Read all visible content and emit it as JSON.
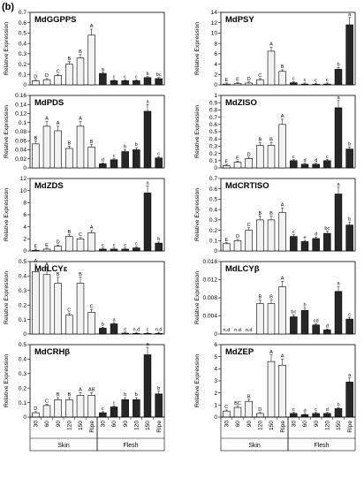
{
  "figure_label": "(b)",
  "colors": {
    "skin": "#f2f2f2",
    "flesh": "#262626",
    "axis": "#000000"
  },
  "categories": [
    "30",
    "60",
    "90",
    "120",
    "150",
    "Ripe",
    "30",
    "60",
    "90",
    "120",
    "150",
    "Ripe"
  ],
  "groups": [
    "Skin",
    "Flesh"
  ],
  "chart_data": [
    {
      "type": "bar",
      "title": "MdGGPPS",
      "ylabel": "Relative Expression",
      "ylim": [
        0,
        0.7
      ],
      "yticks": [
        "0",
        "0.1",
        "0.2",
        "0.3",
        "0.4",
        "0.5",
        "0.6",
        "0.7"
      ],
      "series": [
        {
          "name": "Skin",
          "values": [
            0.04,
            0.05,
            0.09,
            0.2,
            0.26,
            0.48
          ],
          "labels": [
            "D",
            "D",
            "C",
            "B",
            "B",
            "A"
          ]
        },
        {
          "name": "Flesh",
          "values": [
            0.11,
            0.04,
            0.04,
            0.04,
            0.07,
            0.06
          ],
          "labels": [
            "a",
            "c",
            "c",
            "c",
            "b",
            "bc"
          ]
        }
      ]
    },
    {
      "type": "bar",
      "title": "MdPSY",
      "ylabel": "Relative Expression",
      "ylim": [
        0,
        14
      ],
      "yticks": [
        "0",
        "2",
        "4",
        "6",
        "8",
        "10",
        "12",
        "14"
      ],
      "series": [
        {
          "name": "Skin",
          "values": [
            0.15,
            0.25,
            0.35,
            1.0,
            6.5,
            2.6
          ],
          "labels": [
            "E",
            "E",
            "D",
            "C",
            "A",
            "B"
          ]
        },
        {
          "name": "Flesh",
          "values": [
            0.4,
            0.15,
            0.1,
            0.15,
            3.0,
            11.6
          ],
          "labels": [
            "c",
            "c",
            "c",
            "c",
            "b",
            "a"
          ]
        }
      ]
    },
    {
      "type": "bar",
      "title": "MdPDS",
      "ylabel": "Relative Expression",
      "ylim": [
        0,
        0.16
      ],
      "yticks": [
        "0",
        "0.02",
        "0.04",
        "0.06",
        "0.08",
        "0.1",
        "0.12",
        "0.14",
        "0.16"
      ],
      "series": [
        {
          "name": "Skin",
          "values": [
            0.053,
            0.092,
            0.082,
            0.043,
            0.092,
            0.046
          ],
          "labels": [
            "B",
            "A",
            "A",
            "B",
            "A",
            "B"
          ]
        },
        {
          "name": "Flesh",
          "values": [
            0.009,
            0.018,
            0.036,
            0.04,
            0.125,
            0.022
          ],
          "labels": [
            "d",
            "c",
            "b",
            "b",
            "a",
            "c"
          ]
        }
      ]
    },
    {
      "type": "bar",
      "title": "MdZISO",
      "ylabel": "Relative Expression",
      "ylim": [
        0,
        1
      ],
      "yticks": [
        "0",
        "0.1",
        "0.2",
        "0.3",
        "0.4",
        "0.5",
        "0.6",
        "0.7",
        "0.8",
        "0.9",
        "1"
      ],
      "series": [
        {
          "name": "Skin",
          "values": [
            0.03,
            0.08,
            0.13,
            0.31,
            0.31,
            0.6
          ],
          "labels": [
            "E",
            "E",
            "D",
            "B",
            "B",
            "A"
          ]
        },
        {
          "name": "Flesh",
          "values": [
            0.1,
            0.05,
            0.05,
            0.1,
            0.83,
            0.26
          ],
          "labels": [
            "c",
            "d",
            "d",
            "c",
            "a",
            "b"
          ]
        }
      ]
    },
    {
      "type": "bar",
      "title": "MdZDS",
      "ylabel": "Relative Expression",
      "ylim": [
        0,
        12
      ],
      "yticks": [
        "0",
        "2",
        "4",
        "6",
        "8",
        "10",
        "12"
      ],
      "series": [
        {
          "name": "Skin",
          "values": [
            0.1,
            0.3,
            0.8,
            2.4,
            2.0,
            3.0
          ],
          "labels": [
            "E",
            "E",
            "D",
            "B",
            "C",
            "A"
          ]
        },
        {
          "name": "Flesh",
          "values": [
            0.3,
            0.3,
            0.3,
            0.5,
            9.6,
            1.3
          ],
          "labels": [
            "c",
            "c",
            "c",
            "c",
            "a",
            "b"
          ]
        }
      ]
    },
    {
      "type": "bar",
      "title": "MdCRTISO",
      "ylabel": "Relative Expression",
      "ylim": [
        0,
        0.7
      ],
      "yticks": [
        "0",
        "0.1",
        "0.2",
        "0.3",
        "0.4",
        "0.5",
        "0.6",
        "0.7"
      ],
      "series": [
        {
          "name": "Skin",
          "values": [
            0.07,
            0.1,
            0.2,
            0.3,
            0.3,
            0.37
          ],
          "labels": [
            "E",
            "D",
            "C",
            "B",
            "B",
            "A"
          ]
        },
        {
          "name": "Flesh",
          "values": [
            0.14,
            0.09,
            0.12,
            0.17,
            0.55,
            0.25
          ],
          "labels": [
            "c",
            "e",
            "d",
            "bc",
            "a",
            "b"
          ]
        }
      ]
    },
    {
      "type": "bar",
      "title": "MdLCYε",
      "ylabel": "Relative Expression",
      "ylim": [
        0,
        0.5
      ],
      "yticks": [
        "0",
        "0.1",
        "0.2",
        "0.3",
        "0.4",
        "0.5"
      ],
      "series": [
        {
          "name": "Skin",
          "values": [
            0.43,
            0.41,
            0.35,
            0.13,
            0.35,
            0.15
          ],
          "labels": [
            "A",
            "A",
            "B",
            "C",
            "B",
            "C"
          ]
        },
        {
          "name": "Flesh",
          "values": [
            0.04,
            0.07,
            0.006,
            0.004,
            0.004,
            0.004
          ],
          "labels": [
            "b",
            "a",
            "c",
            "n.d",
            "c",
            "n.d"
          ]
        }
      ]
    },
    {
      "type": "bar",
      "title": "MdLCYβ",
      "ylabel": "Relative Expression",
      "ylim": [
        0,
        0.016
      ],
      "yticks": [
        "0",
        "0.004",
        "0.008",
        "0.012",
        "0.016"
      ],
      "series": [
        {
          "name": "Skin",
          "values": [
            0,
            0,
            0,
            0.0067,
            0.0067,
            0.0104
          ],
          "labels": [
            "n.d",
            "n.d",
            "n.d",
            "B",
            "B",
            "A"
          ]
        },
        {
          "name": "Flesh",
          "values": [
            0.0038,
            0.0052,
            0.002,
            0.0009,
            0.0094,
            0.0033
          ],
          "labels": [
            "bc",
            "b",
            "cd",
            "d",
            "a",
            "c"
          ]
        }
      ]
    },
    {
      "type": "bar",
      "title": "MdCRHβ",
      "ylabel": "Relative Expression",
      "ylim": [
        0,
        0.5
      ],
      "yticks": [
        "0",
        "0.1",
        "0.2",
        "0.3",
        "0.4",
        "0.5"
      ],
      "series": [
        {
          "name": "Skin",
          "values": [
            0.03,
            0.08,
            0.12,
            0.12,
            0.15,
            0.15
          ],
          "labels": [
            "D",
            "C",
            "B",
            "B",
            "A",
            "AB"
          ]
        },
        {
          "name": "Flesh",
          "values": [
            0.03,
            0.07,
            0.12,
            0.12,
            0.43,
            0.16
          ],
          "labels": [
            "c",
            "c",
            "b",
            "b",
            "a",
            "b"
          ]
        }
      ]
    },
    {
      "type": "bar",
      "title": "MdZEP",
      "ylabel": "Relative Expression",
      "ylim": [
        0,
        6
      ],
      "yticks": [
        "0",
        "1",
        "2",
        "3",
        "4",
        "5",
        "6"
      ],
      "series": [
        {
          "name": "Skin",
          "values": [
            0.5,
            0.8,
            1.3,
            0.3,
            4.6,
            4.3
          ],
          "labels": [
            "C",
            "BC",
            "B",
            "D",
            "A",
            "A"
          ]
        },
        {
          "name": "Flesh",
          "values": [
            0.3,
            0.2,
            0.3,
            0.3,
            0.7,
            2.9
          ],
          "labels": [
            "c",
            "d",
            "c",
            "d",
            "b",
            "a"
          ]
        }
      ]
    }
  ]
}
